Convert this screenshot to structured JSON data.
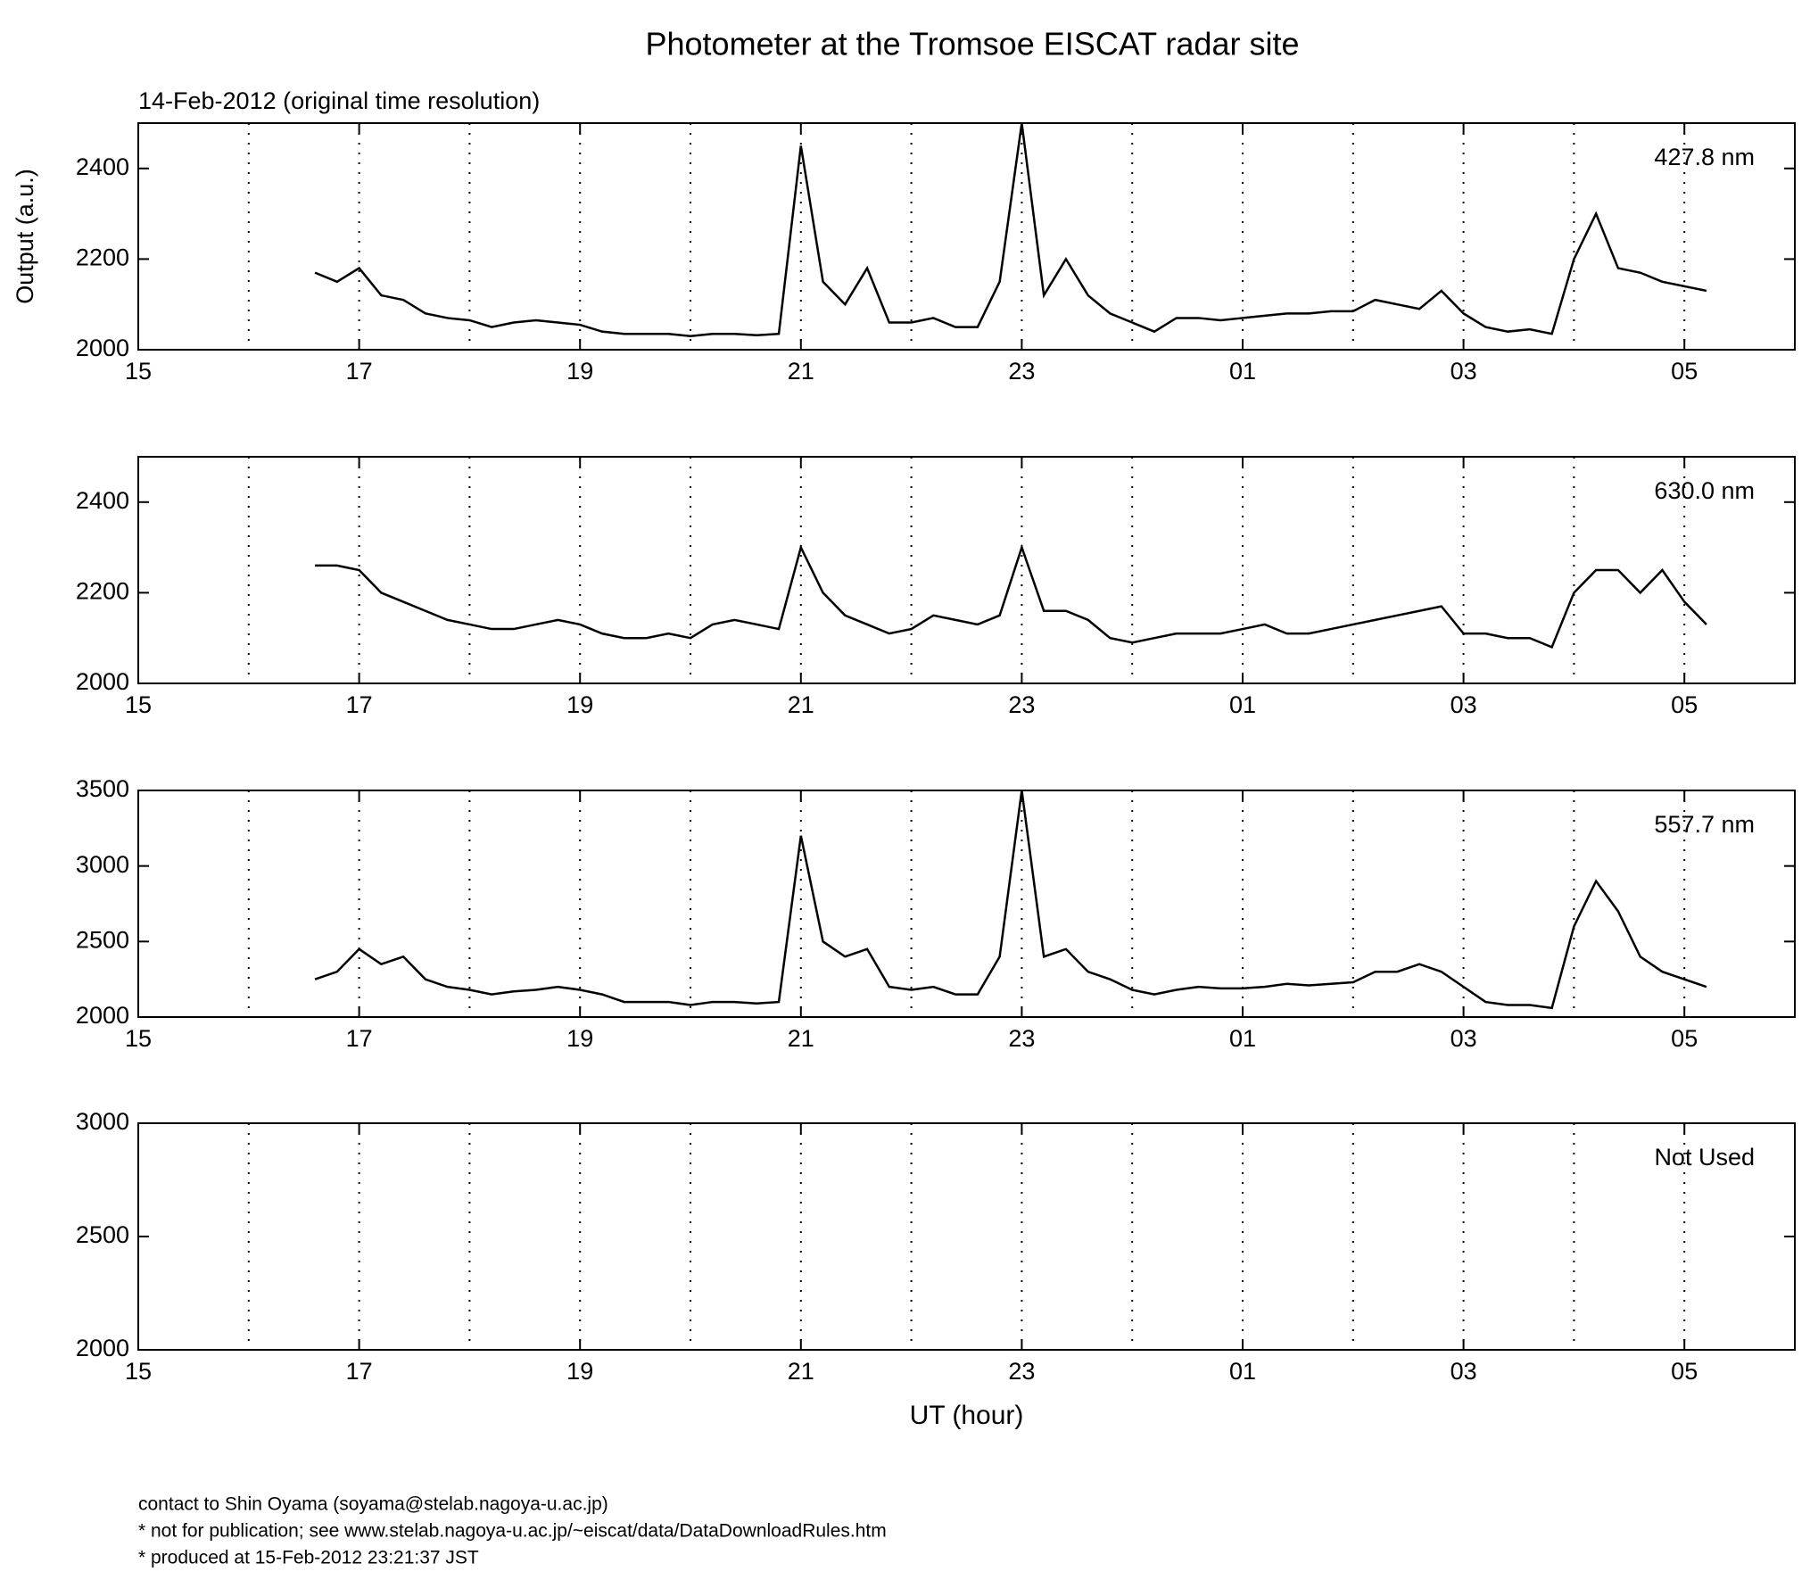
{
  "figure": {
    "title": "Photometer at the Tromsoe EISCAT radar site",
    "subtitle": "14-Feb-2012 (original time resolution)",
    "footer": [
      "contact to Shin Oyama (soyama@stelab.nagoya-u.ac.jp)",
      "* not for publication; see www.stelab.nagoya-u.ac.jp/~eiscat/data/DataDownloadRules.htm",
      "* produced at 15-Feb-2012 23:21:37 JST"
    ]
  },
  "chart_data": [
    {
      "type": "line",
      "label": "427.8 nm",
      "ylabel": "Output (a.u.)",
      "color": "#000000",
      "grid": true,
      "x": [
        16.6,
        16.8,
        17,
        17.2,
        17.4,
        17.6,
        17.8,
        18,
        18.2,
        18.4,
        18.6,
        18.8,
        19,
        19.2,
        19.4,
        19.6,
        19.8,
        20,
        20.2,
        20.4,
        20.6,
        20.8,
        21,
        21.2,
        21.4,
        21.6,
        21.8,
        22,
        22.2,
        22.4,
        22.6,
        22.8,
        23,
        23.2,
        23.4,
        23.6,
        23.8,
        24,
        24.2,
        24.4,
        24.6,
        24.8,
        25,
        25.2,
        25.4,
        25.6,
        25.8,
        26,
        26.2,
        26.4,
        26.6,
        26.8,
        27,
        27.2,
        27.4,
        27.6,
        27.8,
        28,
        28.2,
        28.4,
        28.6,
        28.8,
        29,
        29.2
      ],
      "values": [
        2170,
        2150,
        2180,
        2120,
        2110,
        2080,
        2070,
        2065,
        2050,
        2060,
        2065,
        2060,
        2055,
        2040,
        2035,
        2035,
        2035,
        2030,
        2035,
        2035,
        2032,
        2035,
        2450,
        2150,
        2100,
        2180,
        2060,
        2060,
        2070,
        2050,
        2050,
        2150,
        2500,
        2120,
        2200,
        2120,
        2080,
        2060,
        2040,
        2070,
        2070,
        2065,
        2070,
        2075,
        2080,
        2080,
        2085,
        2085,
        2110,
        2100,
        2090,
        2130,
        2080,
        2050,
        2040,
        2045,
        2035,
        2200,
        2300,
        2180,
        2170,
        2150,
        2140,
        2130
      ],
      "xlim": [
        15,
        30
      ],
      "xticks": [
        15,
        17,
        19,
        21,
        23,
        {
          "value": 25,
          "label": "01"
        },
        {
          "value": 27,
          "label": "03"
        },
        {
          "value": 29,
          "label": "05"
        }
      ],
      "ylim": [
        2000,
        2500
      ],
      "yticks": [
        2000,
        2200,
        2400
      ]
    },
    {
      "type": "line",
      "label": "630.0 nm",
      "color": "#000000",
      "grid": true,
      "x": [
        16.6,
        16.8,
        17,
        17.2,
        17.4,
        17.6,
        17.8,
        18,
        18.2,
        18.4,
        18.6,
        18.8,
        19,
        19.2,
        19.4,
        19.6,
        19.8,
        20,
        20.2,
        20.4,
        20.6,
        20.8,
        21,
        21.2,
        21.4,
        21.6,
        21.8,
        22,
        22.2,
        22.4,
        22.6,
        22.8,
        23,
        23.2,
        23.4,
        23.6,
        23.8,
        24,
        24.2,
        24.4,
        24.6,
        24.8,
        25,
        25.2,
        25.4,
        25.6,
        25.8,
        26,
        26.2,
        26.4,
        26.6,
        26.8,
        27,
        27.2,
        27.4,
        27.6,
        27.8,
        28,
        28.2,
        28.4,
        28.6,
        28.8,
        29,
        29.2
      ],
      "values": [
        2260,
        2260,
        2250,
        2200,
        2180,
        2160,
        2140,
        2130,
        2120,
        2120,
        2130,
        2140,
        2130,
        2110,
        2100,
        2100,
        2110,
        2100,
        2130,
        2140,
        2130,
        2120,
        2300,
        2200,
        2150,
        2130,
        2110,
        2120,
        2150,
        2140,
        2130,
        2150,
        2300,
        2160,
        2160,
        2140,
        2100,
        2090,
        2100,
        2110,
        2110,
        2110,
        2120,
        2130,
        2110,
        2110,
        2120,
        2130,
        2140,
        2150,
        2160,
        2170,
        2110,
        2110,
        2100,
        2100,
        2080,
        2200,
        2250,
        2250,
        2200,
        2250,
        2180,
        2130
      ],
      "xlim": [
        15,
        30
      ],
      "xticks": [
        15,
        17,
        19,
        21,
        23,
        {
          "value": 25,
          "label": "01"
        },
        {
          "value": 27,
          "label": "03"
        },
        {
          "value": 29,
          "label": "05"
        }
      ],
      "ylim": [
        2000,
        2500
      ],
      "yticks": [
        2000,
        2200,
        2400
      ]
    },
    {
      "type": "line",
      "label": "557.7 nm",
      "color": "#000000",
      "grid": true,
      "x": [
        16.6,
        16.8,
        17,
        17.2,
        17.4,
        17.6,
        17.8,
        18,
        18.2,
        18.4,
        18.6,
        18.8,
        19,
        19.2,
        19.4,
        19.6,
        19.8,
        20,
        20.2,
        20.4,
        20.6,
        20.8,
        21,
        21.2,
        21.4,
        21.6,
        21.8,
        22,
        22.2,
        22.4,
        22.6,
        22.8,
        23,
        23.2,
        23.4,
        23.6,
        23.8,
        24,
        24.2,
        24.4,
        24.6,
        24.8,
        25,
        25.2,
        25.4,
        25.6,
        25.8,
        26,
        26.2,
        26.4,
        26.6,
        26.8,
        27,
        27.2,
        27.4,
        27.6,
        27.8,
        28,
        28.2,
        28.4,
        28.6,
        28.8,
        29,
        29.2
      ],
      "values": [
        2250,
        2300,
        2450,
        2350,
        2400,
        2250,
        2200,
        2180,
        2150,
        2170,
        2180,
        2200,
        2180,
        2150,
        2100,
        2100,
        2100,
        2080,
        2100,
        2100,
        2090,
        2100,
        3200,
        2500,
        2400,
        2450,
        2200,
        2180,
        2200,
        2150,
        2150,
        2400,
        3500,
        2400,
        2450,
        2300,
        2250,
        2180,
        2150,
        2180,
        2200,
        2190,
        2190,
        2200,
        2220,
        2210,
        2220,
        2230,
        2300,
        2300,
        2350,
        2300,
        2200,
        2100,
        2080,
        2080,
        2060,
        2600,
        2900,
        2700,
        2400,
        2300,
        2250,
        2200
      ],
      "xlim": [
        15,
        30
      ],
      "xticks": [
        15,
        17,
        19,
        21,
        23,
        {
          "value": 25,
          "label": "01"
        },
        {
          "value": 27,
          "label": "03"
        },
        {
          "value": 29,
          "label": "05"
        }
      ],
      "ylim": [
        2000,
        3500
      ],
      "yticks": [
        2000,
        2500,
        3000,
        3500
      ]
    },
    {
      "type": "line",
      "label": "Not Used",
      "xlabel": "UT (hour)",
      "color": "#000000",
      "grid": true,
      "xlim": [
        15,
        30
      ],
      "xticks": [
        15,
        17,
        19,
        21,
        23,
        {
          "value": 25,
          "label": "01"
        },
        {
          "value": 27,
          "label": "03"
        },
        {
          "value": 29,
          "label": "05"
        }
      ],
      "ylim": [
        2000,
        3000
      ],
      "yticks": [
        2000,
        2500,
        3000
      ]
    }
  ]
}
